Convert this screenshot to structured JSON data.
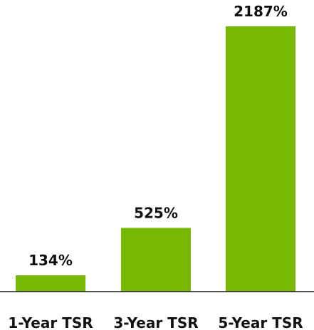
{
  "chart_data": {
    "type": "bar",
    "categories": [
      "1-Year TSR",
      "3-Year TSR",
      "5-Year TSR"
    ],
    "values": [
      134,
      525,
      2187
    ],
    "value_labels": [
      "134%",
      "525%",
      "2187%"
    ],
    "title": "",
    "xlabel": "",
    "ylabel": "",
    "ylim": [
      0,
      2187
    ],
    "grid": false,
    "legend": "none",
    "bar_color": "#76b900"
  }
}
